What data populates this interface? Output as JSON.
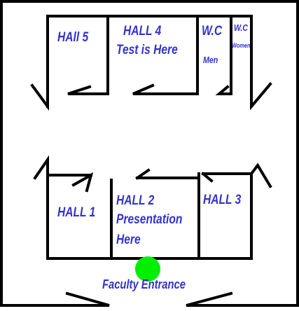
{
  "colors": {
    "wall": "#000000",
    "label": "#3333cc",
    "entrance_marker": "#00ee00",
    "background": "#ffffff"
  },
  "rooms": {
    "hall5": {
      "name": "HAll 5"
    },
    "hall4": {
      "name": "HALL 4",
      "note": "Test is Here"
    },
    "wc_men": {
      "name": "W.C",
      "note": "Men"
    },
    "wc_women": {
      "name": "W.C",
      "note": "Women"
    },
    "hall1": {
      "name": "HALL 1"
    },
    "hall2": {
      "name": "HALL 2",
      "note_line1": "Presentation",
      "note_line2": "Here"
    },
    "hall3": {
      "name": "HALL 3"
    }
  },
  "entrance": {
    "label": "Faculty Entrance",
    "marker_icon": "green-dot-icon"
  }
}
